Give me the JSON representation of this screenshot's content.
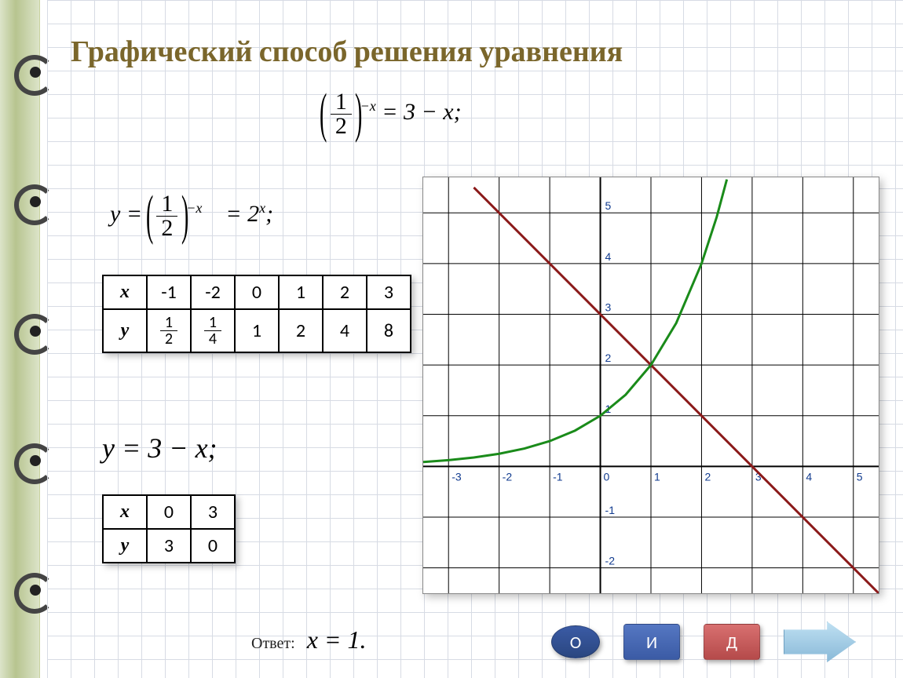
{
  "title": "Графический способ решения уравнения",
  "equations": {
    "main_frac_num": "1",
    "main_frac_den": "2",
    "main_exp": "−x",
    "main_rhs": "= 3 − x;",
    "y_label": "y =",
    "y_frac_num": "1",
    "y_frac_den": "2",
    "y_exp": "−x",
    "y_eq2": "= 2",
    "y_eq2_exp": "x",
    "y_eq2_tail": ";",
    "line_eq": "y = 3 − x;"
  },
  "table1": {
    "row_labels": [
      "x",
      "y"
    ],
    "x": [
      "-1",
      "-2",
      "0",
      "1",
      "2",
      "3"
    ],
    "y": [
      "1/2",
      "1/4",
      "1",
      "2",
      "4",
      "8"
    ]
  },
  "table2": {
    "row_labels": [
      "x",
      "y"
    ],
    "x": [
      "0",
      "3"
    ],
    "y": [
      "3",
      "0"
    ]
  },
  "answer": {
    "label": "Ответ:",
    "value": "x = 1."
  },
  "chart": {
    "type": "line-overlay",
    "xlim": [
      -3.5,
      5.5
    ],
    "ylim": [
      -2.5,
      5.7
    ],
    "xtick_labels": [
      "-3",
      "-2",
      "-1",
      "0",
      "1",
      "2",
      "3",
      "4",
      "5"
    ],
    "ytick_labels": [
      "-2",
      "-1",
      "1",
      "2",
      "3",
      "4",
      "5"
    ],
    "grid_color": "#000000",
    "grid_width": 1,
    "axis_color": "#000000",
    "axis_width": 2,
    "background_color": "#ffffff",
    "label_fontsize": 14,
    "label_color": "#113b8f",
    "series": {
      "line": {
        "name": "y=3-x",
        "color": "#8b1a1a",
        "width": 3,
        "points": [
          [
            -2.5,
            5.5
          ],
          [
            5.5,
            -2.5
          ]
        ]
      },
      "exp": {
        "name": "y=2^x",
        "color": "#1a8b1a",
        "width": 3,
        "points": [
          [
            -3.5,
            0.088
          ],
          [
            -3,
            0.125
          ],
          [
            -2.5,
            0.177
          ],
          [
            -2,
            0.25
          ],
          [
            -1.5,
            0.354
          ],
          [
            -1,
            0.5
          ],
          [
            -0.5,
            0.707
          ],
          [
            0,
            1
          ],
          [
            0.5,
            1.414
          ],
          [
            1,
            2
          ],
          [
            1.5,
            2.828
          ],
          [
            2,
            4
          ],
          [
            2.3,
            4.92
          ],
          [
            2.5,
            5.66
          ]
        ]
      }
    }
  },
  "buttons": {
    "o": {
      "label": "О",
      "bg": "#3b5ba5"
    },
    "i": {
      "label": "И",
      "bg": "#3b5ba5"
    },
    "d": {
      "label": "Д",
      "bg": "#b54a4a"
    }
  }
}
